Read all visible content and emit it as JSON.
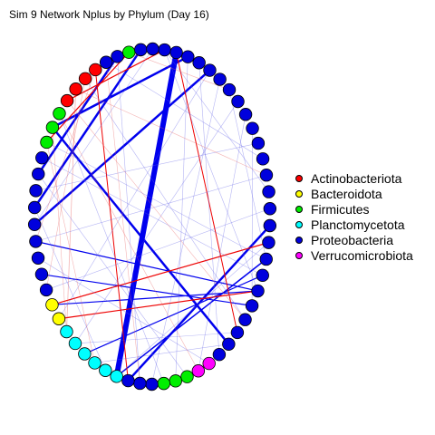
{
  "title": "Sim 9 Network Nplus by Phylum (Day 16)",
  "legend": [
    {
      "label": "Actinobacteriota",
      "color": "#ff0000"
    },
    {
      "label": "Bacteroidota",
      "color": "#ffff00"
    },
    {
      "label": "Firmicutes",
      "color": "#00ee00"
    },
    {
      "label": "Planctomycetota",
      "color": "#00ffff"
    },
    {
      "label": "Proteobacteria",
      "color": "#0000dd"
    },
    {
      "label": "Verrucomicrobiota",
      "color": "#ff00ff"
    }
  ],
  "nodes": [
    {
      "phylum": "Proteobacteria"
    },
    {
      "phylum": "Proteobacteria"
    },
    {
      "phylum": "Proteobacteria"
    },
    {
      "phylum": "Proteobacteria"
    },
    {
      "phylum": "Proteobacteria"
    },
    {
      "phylum": "Proteobacteria"
    },
    {
      "phylum": "Proteobacteria"
    },
    {
      "phylum": "Proteobacteria"
    },
    {
      "phylum": "Proteobacteria"
    },
    {
      "phylum": "Proteobacteria"
    },
    {
      "phylum": "Proteobacteria"
    },
    {
      "phylum": "Proteobacteria"
    },
    {
      "phylum": "Proteobacteria"
    },
    {
      "phylum": "Proteobacteria"
    },
    {
      "phylum": "Proteobacteria"
    },
    {
      "phylum": "Proteobacteria"
    },
    {
      "phylum": "Proteobacteria"
    },
    {
      "phylum": "Proteobacteria"
    },
    {
      "phylum": "Proteobacteria"
    },
    {
      "phylum": "Proteobacteria"
    },
    {
      "phylum": "Proteobacteria"
    },
    {
      "phylum": "Proteobacteria"
    },
    {
      "phylum": "Proteobacteria"
    },
    {
      "phylum": "Proteobacteria"
    },
    {
      "phylum": "Proteobacteria"
    },
    {
      "phylum": "Verrucomicrobiota"
    },
    {
      "phylum": "Verrucomicrobiota"
    },
    {
      "phylum": "Firmicutes"
    },
    {
      "phylum": "Firmicutes"
    },
    {
      "phylum": "Firmicutes"
    },
    {
      "phylum": "Proteobacteria"
    },
    {
      "phylum": "Proteobacteria"
    },
    {
      "phylum": "Proteobacteria"
    },
    {
      "phylum": "Planctomycetota"
    },
    {
      "phylum": "Planctomycetota"
    },
    {
      "phylum": "Planctomycetota"
    },
    {
      "phylum": "Planctomycetota"
    },
    {
      "phylum": "Planctomycetota"
    },
    {
      "phylum": "Planctomycetota"
    },
    {
      "phylum": "Bacteroidota"
    },
    {
      "phylum": "Bacteroidota"
    },
    {
      "phylum": "Proteobacteria"
    },
    {
      "phylum": "Proteobacteria"
    },
    {
      "phylum": "Proteobacteria"
    },
    {
      "phylum": "Proteobacteria"
    },
    {
      "phylum": "Proteobacteria"
    },
    {
      "phylum": "Proteobacteria"
    },
    {
      "phylum": "Proteobacteria"
    },
    {
      "phylum": "Proteobacteria"
    },
    {
      "phylum": "Proteobacteria"
    },
    {
      "phylum": "Firmicutes"
    },
    {
      "phylum": "Firmicutes"
    },
    {
      "phylum": "Firmicutes"
    },
    {
      "phylum": "Actinobacteriota"
    },
    {
      "phylum": "Actinobacteriota"
    },
    {
      "phylum": "Actinobacteriota"
    },
    {
      "phylum": "Actinobacteriota"
    },
    {
      "phylum": "Proteobacteria"
    },
    {
      "phylum": "Proteobacteria"
    },
    {
      "phylum": "Firmicutes"
    },
    {
      "phylum": "Proteobacteria"
    },
    {
      "phylum": "Proteobacteria"
    }
  ],
  "edges": [
    {
      "source": 1,
      "target": 33,
      "weight": 6,
      "sign": "positive",
      "strength": "strong"
    },
    {
      "source": 60,
      "target": 46,
      "weight": 2.5,
      "sign": "positive",
      "strength": "strong"
    },
    {
      "source": 2,
      "target": 51,
      "weight": 2.5,
      "sign": "positive",
      "strength": "strong"
    },
    {
      "source": 58,
      "target": 48,
      "weight": 2.5,
      "sign": "positive",
      "strength": "strong"
    },
    {
      "source": 4,
      "target": 45,
      "weight": 2.5,
      "sign": "positive",
      "strength": "strong"
    },
    {
      "source": 15,
      "target": 32,
      "weight": 2.5,
      "sign": "positive",
      "strength": "strong"
    },
    {
      "source": 51,
      "target": 23,
      "weight": 2.5,
      "sign": "positive",
      "strength": "strong"
    },
    {
      "source": 19,
      "target": 40,
      "weight": 1.2,
      "sign": "positive",
      "strength": "strong"
    },
    {
      "source": 18,
      "target": 36,
      "weight": 1.2,
      "sign": "positive",
      "strength": "strong"
    },
    {
      "source": 19,
      "target": 44,
      "weight": 1.2,
      "sign": "positive",
      "strength": "strong"
    },
    {
      "source": 20,
      "target": 42,
      "weight": 1.2,
      "sign": "positive",
      "strength": "strong"
    },
    {
      "source": 17,
      "target": 33,
      "weight": 1.5,
      "sign": "positive",
      "strength": "strong"
    },
    {
      "source": 16,
      "target": 40,
      "weight": 1.2,
      "sign": "negative",
      "strength": "strong"
    },
    {
      "source": 19,
      "target": 39,
      "weight": 1.2,
      "sign": "negative",
      "strength": "strong"
    },
    {
      "source": 53,
      "target": 0,
      "weight": 1.2,
      "sign": "negative",
      "strength": "strong"
    },
    {
      "source": 50,
      "target": 59,
      "weight": 1.2,
      "sign": "negative",
      "strength": "strong"
    },
    {
      "source": 56,
      "target": 32,
      "weight": 1,
      "sign": "negative",
      "strength": "strong"
    },
    {
      "source": 1,
      "target": 22,
      "weight": 1,
      "sign": "negative",
      "strength": "strong"
    },
    {
      "source": 54,
      "target": 38,
      "weight": 0.8,
      "sign": "negative",
      "strength": "faint"
    },
    {
      "source": 0,
      "target": 19,
      "weight": 0.6,
      "sign": "positive",
      "strength": "faint"
    },
    {
      "source": 0,
      "target": 13,
      "weight": 0.6,
      "sign": "positive",
      "strength": "faint"
    },
    {
      "source": 2,
      "target": 28,
      "weight": 0.6,
      "sign": "positive",
      "strength": "faint"
    },
    {
      "source": 3,
      "target": 24,
      "weight": 0.6,
      "sign": "positive",
      "strength": "faint"
    },
    {
      "source": 5,
      "target": 30,
      "weight": 0.6,
      "sign": "positive",
      "strength": "faint"
    },
    {
      "source": 6,
      "target": 17,
      "weight": 0.6,
      "sign": "positive",
      "strength": "faint"
    },
    {
      "source": 8,
      "target": 26,
      "weight": 0.6,
      "sign": "positive",
      "strength": "faint"
    },
    {
      "source": 9,
      "target": 20,
      "weight": 0.6,
      "sign": "positive",
      "strength": "faint"
    },
    {
      "source": 10,
      "target": 47,
      "weight": 0.6,
      "sign": "positive",
      "strength": "faint"
    },
    {
      "source": 12,
      "target": 44,
      "weight": 0.6,
      "sign": "positive",
      "strength": "faint"
    },
    {
      "source": 14,
      "target": 41,
      "weight": 0.6,
      "sign": "positive",
      "strength": "faint"
    },
    {
      "source": 17,
      "target": 50,
      "weight": 0.6,
      "sign": "positive",
      "strength": "faint"
    },
    {
      "source": 18,
      "target": 49,
      "weight": 0.6,
      "sign": "positive",
      "strength": "faint"
    },
    {
      "source": 21,
      "target": 55,
      "weight": 0.6,
      "sign": "positive",
      "strength": "faint"
    },
    {
      "source": 22,
      "target": 37,
      "weight": 0.6,
      "sign": "positive",
      "strength": "faint"
    },
    {
      "source": 23,
      "target": 35,
      "weight": 0.6,
      "sign": "positive",
      "strength": "faint"
    },
    {
      "source": 25,
      "target": 43,
      "weight": 0.6,
      "sign": "positive",
      "strength": "faint"
    },
    {
      "source": 27,
      "target": 48,
      "weight": 0.6,
      "sign": "positive",
      "strength": "faint"
    },
    {
      "source": 29,
      "target": 52,
      "weight": 0.6,
      "sign": "positive",
      "strength": "faint"
    },
    {
      "source": 31,
      "target": 58,
      "weight": 0.6,
      "sign": "positive",
      "strength": "faint"
    },
    {
      "source": 34,
      "target": 46,
      "weight": 0.6,
      "sign": "positive",
      "strength": "faint"
    },
    {
      "source": 7,
      "target": 37,
      "weight": 0.6,
      "sign": "positive",
      "strength": "faint"
    },
    {
      "source": 11,
      "target": 57,
      "weight": 0.6,
      "sign": "positive",
      "strength": "faint"
    },
    {
      "source": 4,
      "target": 39,
      "weight": 0.6,
      "sign": "positive",
      "strength": "faint"
    },
    {
      "source": 16,
      "target": 33,
      "weight": 0.6,
      "sign": "positive",
      "strength": "faint"
    },
    {
      "source": 45,
      "target": 61,
      "weight": 0.6,
      "sign": "positive",
      "strength": "faint"
    },
    {
      "source": 53,
      "target": 21,
      "weight": 0.6,
      "sign": "negative",
      "strength": "faint"
    },
    {
      "source": 55,
      "target": 41,
      "weight": 0.6,
      "sign": "negative",
      "strength": "faint"
    },
    {
      "source": 52,
      "target": 26,
      "weight": 0.6,
      "sign": "negative",
      "strength": "faint"
    },
    {
      "source": 54,
      "target": 12,
      "weight": 0.6,
      "sign": "negative",
      "strength": "faint"
    },
    {
      "source": 57,
      "target": 31,
      "weight": 0.6,
      "sign": "negative",
      "strength": "faint"
    },
    {
      "source": 56,
      "target": 44,
      "weight": 0.6,
      "sign": "negative",
      "strength": "faint"
    },
    {
      "source": 59,
      "target": 6,
      "weight": 0.6,
      "sign": "negative",
      "strength": "faint"
    },
    {
      "source": 50,
      "target": 35,
      "weight": 0.6,
      "sign": "negative",
      "strength": "faint"
    },
    {
      "source": 51,
      "target": 38,
      "weight": 0.6,
      "sign": "negative",
      "strength": "faint"
    }
  ]
}
